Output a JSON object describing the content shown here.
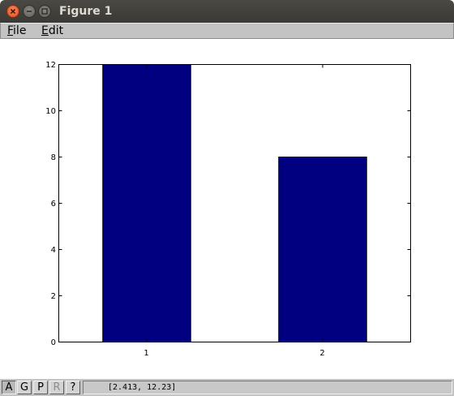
{
  "window": {
    "title": "Figure 1"
  },
  "menu": {
    "file_label": "File",
    "edit_label": "Edit"
  },
  "toolbar": {
    "buttons": [
      "A",
      "G",
      "P",
      "R",
      "?"
    ],
    "coordinates": "[2.413, 12.23]"
  },
  "colors": {
    "bar_fill": "#000080",
    "title_bar": "#3c3b37",
    "close_button": "#e9541f",
    "menubar": "#c3c3c3"
  },
  "chart_data": {
    "type": "bar",
    "categories": [
      "1",
      "2"
    ],
    "values": [
      12,
      8
    ],
    "ylim": [
      0,
      12
    ],
    "yticks": [
      "0",
      "2",
      "4",
      "6",
      "8",
      "10",
      "12"
    ],
    "grid": false,
    "legend": "none"
  }
}
